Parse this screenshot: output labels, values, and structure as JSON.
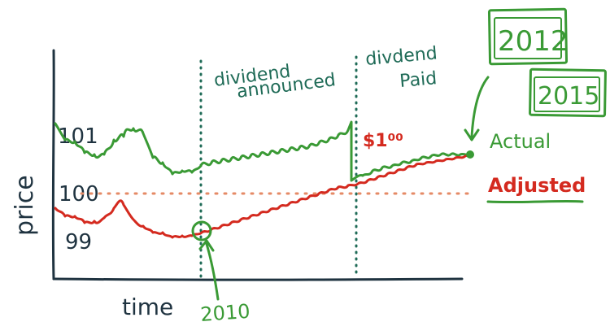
{
  "colors": {
    "ink": "#1f3340",
    "actual": "#3a9a35",
    "adjusted": "#d42a1f",
    "note_teal": "#1f6b57",
    "ref_line": "#e58a66"
  },
  "labels": {
    "y_axis": "price",
    "x_axis": "time",
    "tick_101": "101",
    "tick_100": "100",
    "tick_99": "99",
    "announced_line1": "dividend",
    "announced_line2": "announced",
    "paid_line1": "divdend",
    "paid_line2": "Paid",
    "dividend_amount": "$1⁰⁰",
    "year_2010": "2010",
    "year_2012": "2012",
    "year_2015": "2015",
    "legend_actual": "Actual",
    "legend_adjusted": "Adjusted"
  },
  "chart_data": {
    "type": "line",
    "xlabel": "time",
    "ylabel": "price",
    "y_ticks": [
      101,
      100,
      99
    ],
    "reference_line": {
      "y": 100,
      "style": "dotted"
    },
    "events": [
      {
        "label": "dividend announced",
        "year": 2010
      },
      {
        "label": "divdend Paid",
        "amount": "$1⁰⁰"
      }
    ],
    "years_annotated": [
      "2010",
      "2012",
      "2015"
    ],
    "series": [
      {
        "name": "Actual"
      },
      {
        "name": "Adjusted"
      }
    ]
  }
}
